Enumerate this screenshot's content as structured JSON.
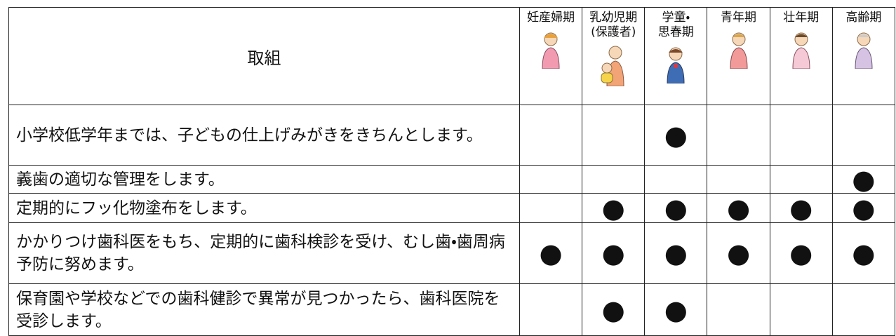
{
  "table": {
    "header": {
      "activity": "取組",
      "columns": [
        {
          "lines": [
            "妊産婦期"
          ]
        },
        {
          "lines": [
            "乳幼児期",
            "(保護者)"
          ]
        },
        {
          "lines": [
            "学童・",
            "思春期"
          ]
        },
        {
          "lines": [
            "青年期"
          ]
        },
        {
          "lines": [
            "壮年期"
          ]
        },
        {
          "lines": [
            "高齢期"
          ]
        }
      ]
    },
    "rows": [
      {
        "label": "小学校低学年までは、子どもの仕上げみがきをきちんとします。",
        "marks": [
          null,
          null,
          "●",
          null,
          null,
          null
        ]
      },
      {
        "label": "義歯の適切な管理をします。",
        "marks": [
          null,
          null,
          null,
          null,
          null,
          "●"
        ]
      },
      {
        "label": "定期的にフッ化物塗布をします。",
        "marks": [
          null,
          "●",
          "●",
          "●",
          "●",
          "●"
        ]
      },
      {
        "label": "かかりつけ歯科医をもち、定期的に歯科検診を受け、むし歯・歯周病予防に努めます。",
        "marks": [
          "●",
          "●",
          "●",
          "●",
          "●",
          "●"
        ]
      },
      {
        "label": "保育園や学校などでの歯科健診で異常が見つかったら、歯科医院を受診します。",
        "marks": [
          null,
          "●",
          "●",
          null,
          null,
          null
        ]
      }
    ]
  }
}
